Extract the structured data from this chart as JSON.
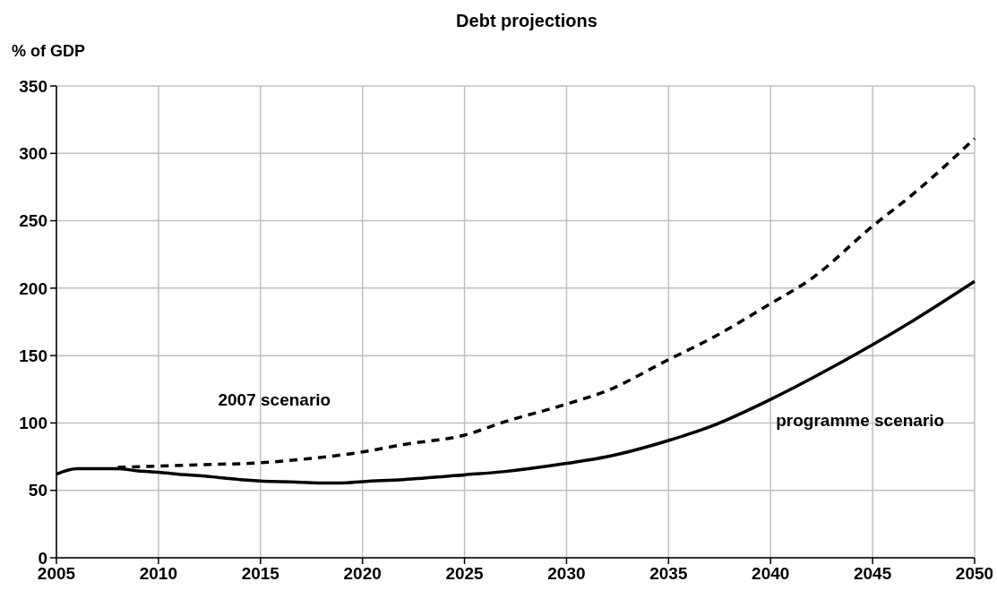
{
  "chart_data": {
    "type": "line",
    "title": "Debt projections",
    "ylabel": "% of GDP",
    "xlim": [
      2005,
      2050
    ],
    "xticks": [
      2005,
      2010,
      2015,
      2020,
      2025,
      2030,
      2035,
      2040,
      2045,
      2050
    ],
    "ylim": [
      0,
      350
    ],
    "yticks": [
      0,
      50,
      100,
      150,
      200,
      250,
      300,
      350
    ],
    "grid": true,
    "series": [
      {
        "name": "2007 scenario",
        "color": "#000000",
        "line_style": "dashed",
        "x": [
          2008,
          2010,
          2012,
          2015,
          2017,
          2020,
          2022,
          2025,
          2027,
          2030,
          2032,
          2035,
          2037,
          2040,
          2042,
          2045,
          2047,
          2050
        ],
        "values": [
          67,
          68,
          69,
          70.5,
          73,
          78.5,
          84,
          91,
          101,
          114,
          124,
          147,
          162,
          188.5,
          207,
          246,
          270,
          311
        ]
      },
      {
        "name": "programme scenario",
        "color": "#000000",
        "line_style": "solid",
        "x": [
          2005,
          2006,
          2007,
          2008,
          2009,
          2010,
          2011,
          2012,
          2013,
          2014,
          2015,
          2016,
          2017,
          2018,
          2019,
          2020,
          2022,
          2025,
          2027,
          2030,
          2032,
          2035,
          2037,
          2040,
          2042,
          2045,
          2047,
          2050
        ],
        "values": [
          62,
          66,
          66,
          66,
          64.5,
          63.5,
          62,
          61,
          59.5,
          58,
          57,
          56.5,
          56,
          55.5,
          55.5,
          56.5,
          58,
          61.5,
          64,
          70,
          75,
          87,
          97,
          117.5,
          133,
          158,
          176,
          205
        ]
      }
    ]
  }
}
